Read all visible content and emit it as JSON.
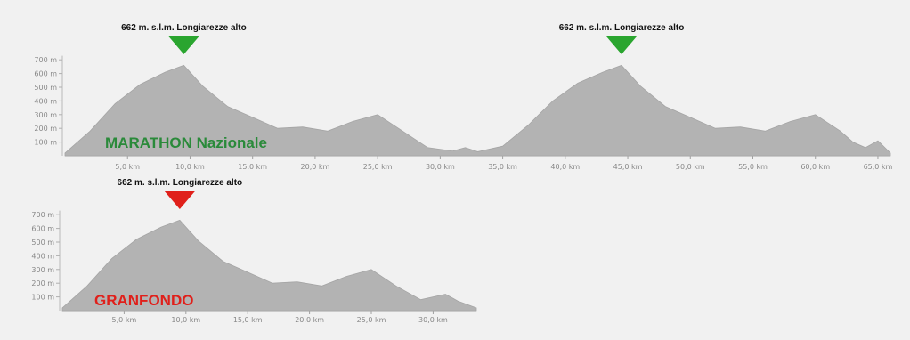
{
  "chart_data": [
    {
      "type": "area",
      "title": "MARATHON Nazionale",
      "subtitle": "",
      "xlabel": "",
      "ylabel": "",
      "xlim": [
        0,
        66
      ],
      "ylim": [
        0,
        750
      ],
      "y_ticks": [
        100,
        200,
        300,
        400,
        500,
        600,
        700
      ],
      "y_tick_labels": [
        "100 m",
        "200 m",
        "300 m",
        "400 m",
        "500 m",
        "600 m",
        "700 m"
      ],
      "x_ticks": [
        5,
        10,
        15,
        20,
        25,
        30,
        35,
        40,
        45,
        50,
        55,
        60,
        65
      ],
      "x_tick_labels": [
        "5,0 km",
        "10,0 km",
        "15,0 km",
        "20,0 km",
        "25,0 km",
        "30,0 km",
        "35,0 km",
        "40,0 km",
        "45,0 km",
        "50,0 km",
        "55,0 km",
        "60,0 km",
        "65,0 km"
      ],
      "series": [
        {
          "x": [
            0,
            2,
            4,
            6,
            8,
            9.5,
            11,
            13,
            15,
            17,
            19,
            21,
            23,
            25,
            27,
            29,
            31,
            32,
            33,
            34,
            35,
            37,
            39,
            41,
            43,
            44.5,
            46,
            48,
            50,
            52,
            54,
            56,
            58,
            60,
            62,
            63,
            64,
            65,
            66
          ],
          "y": [
            20,
            180,
            380,
            520,
            610,
            660,
            510,
            360,
            280,
            200,
            210,
            180,
            250,
            300,
            180,
            60,
            35,
            60,
            30,
            50,
            70,
            220,
            400,
            530,
            610,
            660,
            510,
            360,
            280,
            200,
            210,
            180,
            250,
            300,
            180,
            100,
            60,
            110,
            20
          ],
          "color": "#b3b3b3"
        }
      ],
      "annotations": [
        {
          "text": "662 m. s.l.m. Longiarezze alto",
          "x": 9.5,
          "y": 662,
          "marker_color": "#2aa52f"
        },
        {
          "text": "662 m. s.l.m. Longiarezze alto",
          "x": 44.5,
          "y": 662,
          "marker_color": "#2aa52f"
        }
      ],
      "title_color": "#2a8a3a",
      "grid": false
    },
    {
      "type": "area",
      "title": "GRANFONDO",
      "subtitle": "",
      "xlabel": "",
      "ylabel": "",
      "xlim": [
        0,
        33.5
      ],
      "ylim": [
        0,
        750
      ],
      "y_ticks": [
        100,
        200,
        300,
        400,
        500,
        600,
        700
      ],
      "y_tick_labels": [
        "100 m",
        "200 m",
        "300 m",
        "400 m",
        "500 m",
        "600 m",
        "700 m"
      ],
      "x_ticks": [
        5,
        10,
        15,
        20,
        25,
        30
      ],
      "x_tick_labels": [
        "5,0 km",
        "10,0 km",
        "15,0 km",
        "20,0 km",
        "25,0 km",
        "30,0 km"
      ],
      "series": [
        {
          "x": [
            0,
            2,
            4,
            6,
            8,
            9.5,
            11,
            13,
            15,
            17,
            19,
            21,
            23,
            25,
            27,
            29,
            31,
            32,
            33.5
          ],
          "y": [
            20,
            180,
            380,
            520,
            610,
            660,
            510,
            360,
            280,
            200,
            210,
            180,
            250,
            300,
            180,
            80,
            120,
            70,
            20
          ],
          "color": "#b3b3b3"
        }
      ],
      "annotations": [
        {
          "text": "662 m. s.l.m. Longiarezze alto",
          "x": 9.5,
          "y": 662,
          "marker_color": "#e0201b"
        }
      ],
      "title_color": "#e0201b",
      "grid": false
    }
  ]
}
